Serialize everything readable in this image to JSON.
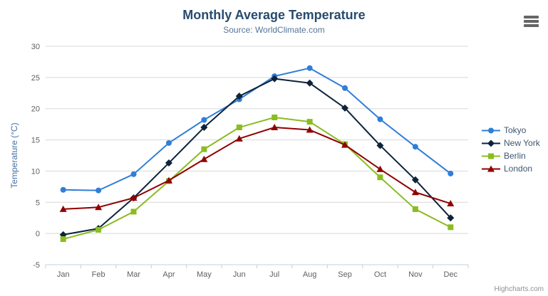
{
  "chart_data": {
    "type": "line",
    "title": "Monthly Average Temperature",
    "subtitle": "Source: WorldClimate.com",
    "categories": [
      "Jan",
      "Feb",
      "Mar",
      "Apr",
      "May",
      "Jun",
      "Jul",
      "Aug",
      "Sep",
      "Oct",
      "Nov",
      "Dec"
    ],
    "series": [
      {
        "name": "Tokyo",
        "color": "#2f7ed8",
        "marker": "circle",
        "values": [
          7.0,
          6.9,
          9.5,
          14.5,
          18.2,
          21.5,
          25.2,
          26.5,
          23.3,
          18.3,
          13.9,
          9.6
        ]
      },
      {
        "name": "New York",
        "color": "#0d233a",
        "marker": "diamond",
        "values": [
          -0.2,
          0.8,
          5.7,
          11.3,
          17.0,
          22.0,
          24.8,
          24.1,
          20.1,
          14.1,
          8.6,
          2.5
        ]
      },
      {
        "name": "Berlin",
        "color": "#8bbc21",
        "marker": "square",
        "values": [
          -0.9,
          0.6,
          3.5,
          8.4,
          13.5,
          17.0,
          18.6,
          17.9,
          14.3,
          9.0,
          3.9,
          1.0
        ]
      },
      {
        "name": "London",
        "color": "#910000",
        "marker": "triangle",
        "values": [
          3.9,
          4.2,
          5.7,
          8.5,
          11.9,
          15.2,
          17.0,
          16.6,
          14.2,
          10.3,
          6.6,
          4.8
        ]
      }
    ],
    "xlabel": "",
    "ylabel": "Temperature (°C)",
    "ylim": [
      -5,
      30
    ],
    "yticks": [
      -5,
      0,
      5,
      10,
      15,
      20,
      25,
      30
    ],
    "grid": true,
    "legend_position": "right",
    "grid_color": "#D8D8D8",
    "axis_line_color": "#C0D0E0"
  },
  "export_menu": {
    "icon": "hamburger-icon"
  },
  "credit": {
    "label": "Highcharts.com"
  }
}
